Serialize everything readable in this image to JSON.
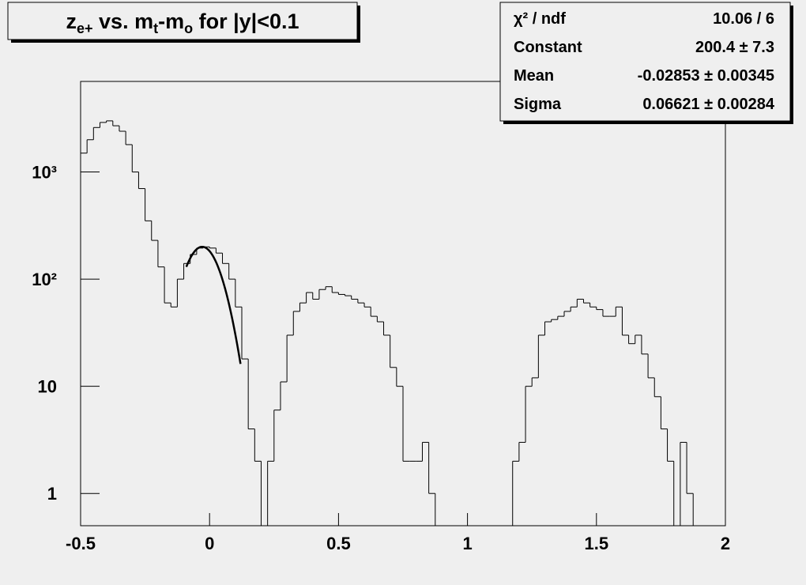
{
  "chart_data": {
    "type": "histogram",
    "title": [
      {
        "text": "z"
      },
      {
        "text": "e+",
        "sub": true
      },
      {
        "text": " vs. m"
      },
      {
        "text": "t",
        "sub": true
      },
      {
        "text": "-m"
      },
      {
        "text": "o",
        "sub": true
      },
      {
        "text": " for |y|<0.1"
      }
    ],
    "bins": [
      -0.5,
      -0.475,
      -0.45,
      -0.425,
      -0.4,
      -0.375,
      -0.35,
      -0.325,
      -0.3,
      -0.275,
      -0.25,
      -0.225,
      -0.2,
      -0.175,
      -0.15,
      -0.125,
      -0.1,
      -0.075,
      -0.05,
      -0.025,
      0,
      0.025,
      0.05,
      0.075,
      0.1,
      0.125,
      0.15,
      0.175,
      0.2,
      0.225,
      0.25,
      0.275,
      0.3,
      0.325,
      0.35,
      0.375,
      0.4,
      0.425,
      0.45,
      0.475,
      0.5,
      0.525,
      0.55,
      0.575,
      0.6,
      0.625,
      0.65,
      0.675,
      0.7,
      0.725,
      0.75,
      0.775,
      0.8,
      0.825,
      0.85,
      0.875,
      0.9,
      0.925,
      0.95,
      0.975,
      1,
      1.025,
      1.05,
      1.075,
      1.1,
      1.125,
      1.15,
      1.175,
      1.2,
      1.225,
      1.25,
      1.275,
      1.3,
      1.325,
      1.35,
      1.375,
      1.4,
      1.425,
      1.45,
      1.475,
      1.5,
      1.525,
      1.55,
      1.575,
      1.6,
      1.625,
      1.65,
      1.675,
      1.7,
      1.725,
      1.75,
      1.775,
      1.8,
      1.825,
      1.85,
      1.875,
      1.9,
      1.925,
      1.95,
      1.975,
      2
    ],
    "counts": [
      1500,
      2000,
      2600,
      2900,
      3000,
      2700,
      2400,
      1800,
      1000,
      700,
      350,
      230,
      130,
      60,
      55,
      100,
      140,
      170,
      195,
      200,
      195,
      175,
      140,
      100,
      55,
      18,
      4,
      2,
      0,
      2,
      6,
      11,
      30,
      50,
      60,
      75,
      65,
      80,
      85,
      75,
      72,
      70,
      65,
      60,
      55,
      45,
      40,
      30,
      15,
      10,
      2,
      2,
      2,
      3,
      1,
      0,
      0,
      0,
      0,
      0,
      0,
      0,
      0,
      0,
      0,
      0,
      0,
      2,
      3,
      10,
      12,
      30,
      40,
      42,
      45,
      50,
      55,
      65,
      60,
      55,
      52,
      45,
      45,
      55,
      30,
      25,
      30,
      20,
      12,
      8,
      4,
      2,
      0,
      3,
      1,
      0,
      0,
      0,
      0,
      0
    ],
    "color": "#000000",
    "fit": {
      "constant": 200.4,
      "mean": -0.02853,
      "sigma": 0.06621,
      "range": [
        -0.09,
        0.12
      ]
    },
    "xlim": [
      -0.5,
      2
    ],
    "xticks": [
      -0.5,
      0,
      0.5,
      1,
      1.5,
      2
    ],
    "ylim": [
      0.5,
      7000
    ],
    "log_y": true,
    "yticks": [
      1,
      10,
      {
        "value": 100,
        "label": "10²"
      },
      {
        "value": 1000,
        "label": "10³"
      }
    ],
    "stats": [
      [
        "χ² / ndf",
        "10.06 / 6"
      ],
      [
        "Constant",
        "200.4 ± 7.3"
      ],
      [
        "Mean",
        "-0.02853 ± 0.00345"
      ],
      [
        "Sigma",
        "0.06621 ± 0.00284"
      ]
    ]
  }
}
